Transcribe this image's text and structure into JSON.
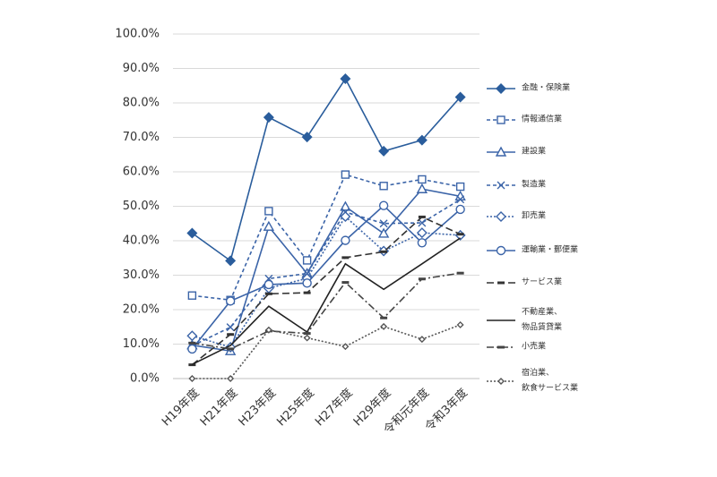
{
  "chart_data": {
    "type": "line",
    "categories": [
      "H19年度",
      "H21年度",
      "H23年度",
      "H25年度",
      "H27年度",
      "H29年度",
      "令和元年度",
      "令和3年度"
    ],
    "ylim": [
      0,
      100
    ],
    "yticks": [
      {
        "value": 0,
        "label": "0.0%"
      },
      {
        "value": 10,
        "label": "10.0%"
      },
      {
        "value": 20,
        "label": "20.0%"
      },
      {
        "value": 30,
        "label": "30.0%"
      },
      {
        "value": 40,
        "label": "40.0%"
      },
      {
        "value": 50,
        "label": "50.0%"
      },
      {
        "value": 60,
        "label": "60.0%"
      },
      {
        "value": 70,
        "label": "70.0%"
      },
      {
        "value": 80,
        "label": "80.0%"
      },
      {
        "value": 90,
        "label": "90.0%"
      },
      {
        "value": 100,
        "label": "100.0%"
      }
    ],
    "grid": true,
    "legend": "right",
    "series": [
      {
        "name": "金融・保険業",
        "color": "#2a5d9c",
        "dash": "solid",
        "marker": "diamond-filled",
        "values": [
          42.2,
          34.2,
          75.8,
          70.1,
          87.0,
          66.0,
          69.2,
          81.7
        ]
      },
      {
        "name": "情報通信業",
        "color": "#3b64a8",
        "dash": "dashed",
        "marker": "square",
        "values": [
          24.1,
          22.8,
          48.6,
          34.3,
          59.2,
          55.9,
          57.8,
          55.7
        ]
      },
      {
        "name": "建設業",
        "color": "#3b64a8",
        "dash": "solid",
        "marker": "triangle",
        "values": [
          9.7,
          8.0,
          44.1,
          30.5,
          49.9,
          42.1,
          55.0,
          52.9
        ]
      },
      {
        "name": "製造業",
        "color": "#3b64a8",
        "dash": "dashed",
        "marker": "x",
        "values": [
          9.5,
          14.9,
          29.0,
          30.5,
          48.3,
          45.0,
          45.2,
          52.0
        ]
      },
      {
        "name": "卸売業",
        "color": "#3b64a8",
        "dash": "dotted",
        "marker": "diamond",
        "values": [
          12.4,
          9.1,
          26.2,
          29.1,
          47.0,
          37.0,
          42.3,
          41.6
        ]
      },
      {
        "name": "運輸業・郵便業",
        "color": "#3b64a8",
        "dash": "solid",
        "marker": "circle",
        "values": [
          8.6,
          22.5,
          27.3,
          27.7,
          40.1,
          50.2,
          39.4,
          49.1
        ]
      },
      {
        "name": "サービス業",
        "color": "#333333",
        "dash": "longdash",
        "marker": "dash",
        "values": [
          4.0,
          12.8,
          24.6,
          24.9,
          35.1,
          36.8,
          46.9,
          41.9
        ]
      },
      {
        "name": "不動産業、\n物品賃貸業",
        "color": "#222222",
        "dash": "solid",
        "marker": "none",
        "values": [
          4.1,
          9.6,
          21.0,
          13.5,
          33.3,
          25.9,
          33.3,
          40.8
        ]
      },
      {
        "name": "小売業",
        "color": "#444444",
        "dash": "dashdot",
        "marker": "dash",
        "values": [
          10.3,
          8.6,
          13.8,
          13.1,
          27.9,
          17.6,
          28.9,
          30.6
        ]
      },
      {
        "name": "宿泊業、\n飲食サービス業",
        "color": "#555555",
        "dash": "dotted",
        "marker": "diamond-small",
        "values": [
          0,
          0,
          14.1,
          11.8,
          9.3,
          15.1,
          11.4,
          15.6
        ]
      }
    ]
  }
}
